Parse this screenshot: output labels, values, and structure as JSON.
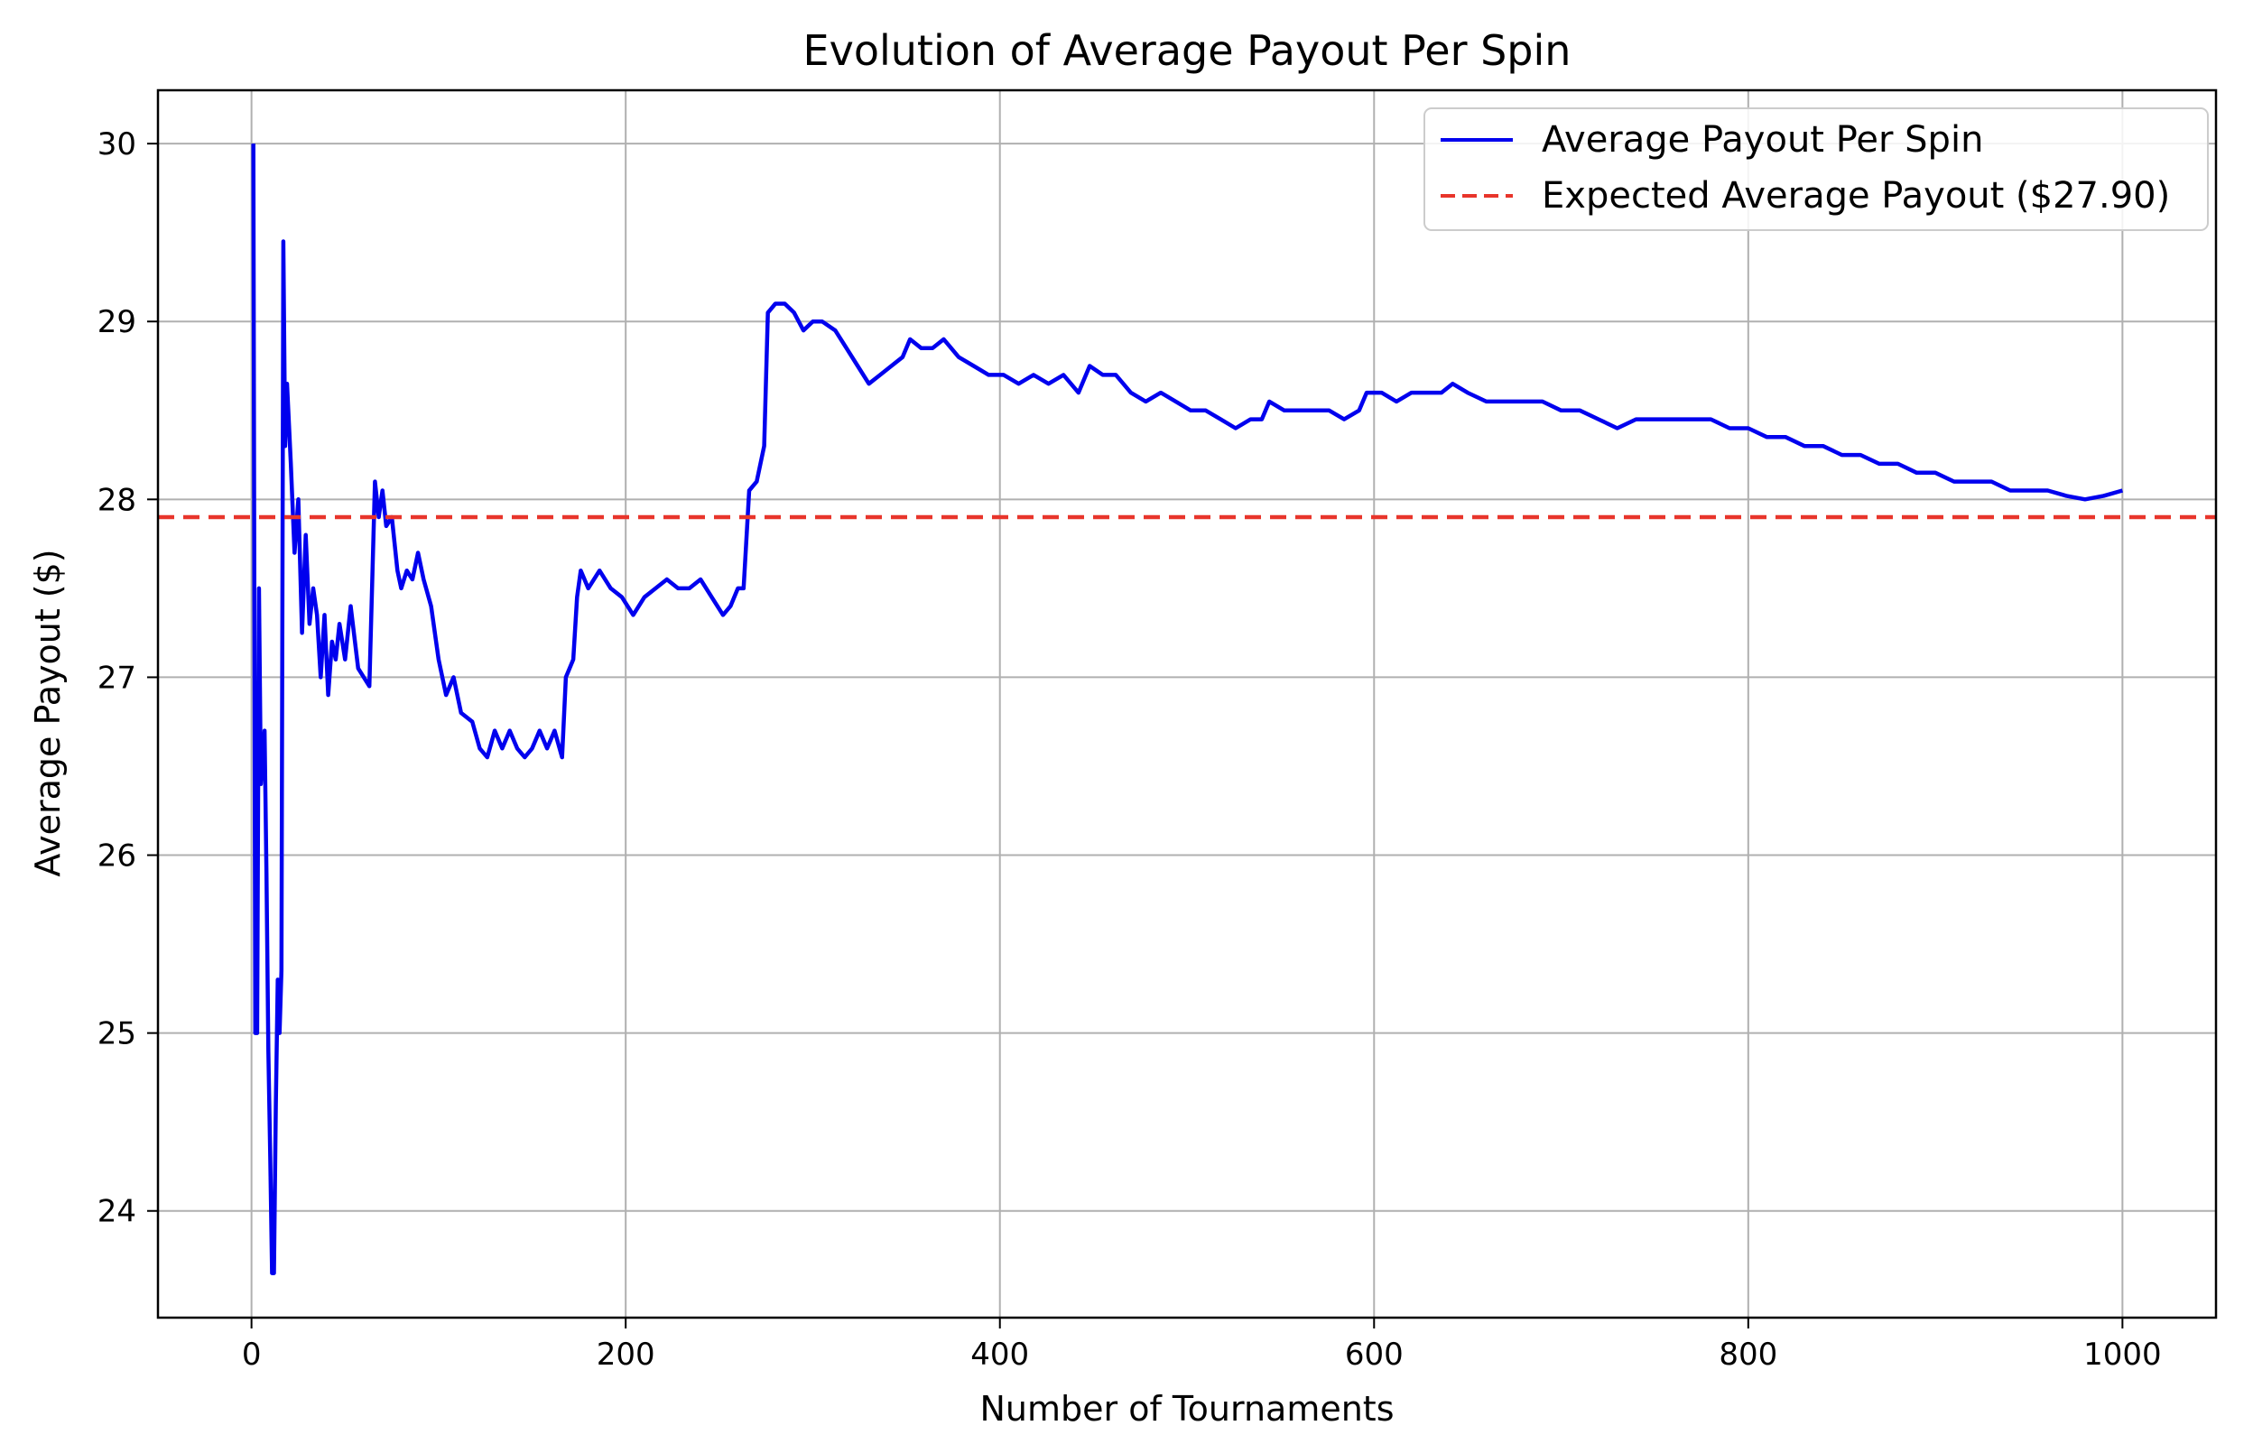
{
  "chart_data": {
    "type": "line",
    "title": "Evolution of Average Payout Per Spin",
    "xlabel": "Number of Tournaments",
    "ylabel": "Average Payout ($)",
    "xlim": [
      -50,
      1050
    ],
    "ylim": [
      23.4,
      30.3
    ],
    "xticks": [
      0,
      200,
      400,
      600,
      800,
      1000
    ],
    "xtick_labels": [
      "0",
      "200",
      "400",
      "600",
      "800",
      "1000"
    ],
    "yticks": [
      24,
      25,
      26,
      27,
      28,
      29,
      30
    ],
    "ytick_labels": [
      "24",
      "25",
      "26",
      "27",
      "28",
      "29",
      "30"
    ],
    "grid": true,
    "legend_position": "top-right",
    "series": [
      {
        "name": "Average Payout Per Spin",
        "color": "#0000ee",
        "style": "solid",
        "points": [
          [
            1,
            30.0
          ],
          [
            2,
            25.0
          ],
          [
            3,
            25.0
          ],
          [
            4,
            27.5
          ],
          [
            5,
            26.4
          ],
          [
            7,
            26.7
          ],
          [
            8,
            25.9
          ],
          [
            9,
            24.9
          ],
          [
            10,
            24.3
          ],
          [
            11,
            23.65
          ],
          [
            12,
            23.65
          ],
          [
            13,
            24.6
          ],
          [
            14,
            25.3
          ],
          [
            15,
            25.0
          ],
          [
            16,
            25.35
          ],
          [
            17,
            29.45
          ],
          [
            18,
            28.3
          ],
          [
            19,
            28.65
          ],
          [
            21,
            28.2
          ],
          [
            23,
            27.7
          ],
          [
            25,
            28.0
          ],
          [
            27,
            27.25
          ],
          [
            29,
            27.8
          ],
          [
            31,
            27.3
          ],
          [
            33,
            27.5
          ],
          [
            35,
            27.35
          ],
          [
            37,
            27.0
          ],
          [
            39,
            27.35
          ],
          [
            41,
            26.9
          ],
          [
            43,
            27.2
          ],
          [
            45,
            27.1
          ],
          [
            47,
            27.3
          ],
          [
            50,
            27.1
          ],
          [
            53,
            27.4
          ],
          [
            57,
            27.05
          ],
          [
            60,
            27.0
          ],
          [
            63,
            26.95
          ],
          [
            66,
            28.1
          ],
          [
            68,
            27.9
          ],
          [
            70,
            28.05
          ],
          [
            72,
            27.85
          ],
          [
            75,
            27.9
          ],
          [
            78,
            27.6
          ],
          [
            80,
            27.5
          ],
          [
            83,
            27.6
          ],
          [
            86,
            27.55
          ],
          [
            89,
            27.7
          ],
          [
            92,
            27.55
          ],
          [
            96,
            27.4
          ],
          [
            100,
            27.1
          ],
          [
            104,
            26.9
          ],
          [
            108,
            27.0
          ],
          [
            112,
            26.8
          ],
          [
            118,
            26.75
          ],
          [
            122,
            26.6
          ],
          [
            126,
            26.55
          ],
          [
            130,
            26.7
          ],
          [
            134,
            26.6
          ],
          [
            138,
            26.7
          ],
          [
            142,
            26.6
          ],
          [
            146,
            26.55
          ],
          [
            150,
            26.6
          ],
          [
            154,
            26.7
          ],
          [
            158,
            26.6
          ],
          [
            162,
            26.7
          ],
          [
            166,
            26.55
          ],
          [
            168,
            27.0
          ],
          [
            170,
            27.05
          ],
          [
            172,
            27.1
          ],
          [
            174,
            27.45
          ],
          [
            176,
            27.6
          ],
          [
            180,
            27.5
          ],
          [
            186,
            27.6
          ],
          [
            192,
            27.5
          ],
          [
            198,
            27.45
          ],
          [
            204,
            27.35
          ],
          [
            210,
            27.45
          ],
          [
            216,
            27.5
          ],
          [
            222,
            27.55
          ],
          [
            228,
            27.5
          ],
          [
            234,
            27.5
          ],
          [
            240,
            27.55
          ],
          [
            246,
            27.45
          ],
          [
            252,
            27.35
          ],
          [
            256,
            27.4
          ],
          [
            260,
            27.5
          ],
          [
            263,
            27.5
          ],
          [
            266,
            28.05
          ],
          [
            270,
            28.1
          ],
          [
            274,
            28.3
          ],
          [
            276,
            29.05
          ],
          [
            280,
            29.1
          ],
          [
            285,
            29.1
          ],
          [
            290,
            29.05
          ],
          [
            295,
            28.95
          ],
          [
            300,
            29.0
          ],
          [
            305,
            29.0
          ],
          [
            312,
            28.95
          ],
          [
            318,
            28.85
          ],
          [
            324,
            28.75
          ],
          [
            330,
            28.65
          ],
          [
            336,
            28.7
          ],
          [
            342,
            28.75
          ],
          [
            348,
            28.8
          ],
          [
            352,
            28.9
          ],
          [
            358,
            28.85
          ],
          [
            364,
            28.85
          ],
          [
            370,
            28.9
          ],
          [
            378,
            28.8
          ],
          [
            386,
            28.75
          ],
          [
            394,
            28.7
          ],
          [
            402,
            28.7
          ],
          [
            410,
            28.65
          ],
          [
            418,
            28.7
          ],
          [
            426,
            28.65
          ],
          [
            434,
            28.7
          ],
          [
            442,
            28.6
          ],
          [
            448,
            28.75
          ],
          [
            455,
            28.7
          ],
          [
            462,
            28.7
          ],
          [
            470,
            28.6
          ],
          [
            478,
            28.55
          ],
          [
            486,
            28.6
          ],
          [
            494,
            28.55
          ],
          [
            502,
            28.5
          ],
          [
            510,
            28.5
          ],
          [
            518,
            28.45
          ],
          [
            526,
            28.4
          ],
          [
            534,
            28.45
          ],
          [
            540,
            28.45
          ],
          [
            544,
            28.55
          ],
          [
            552,
            28.5
          ],
          [
            560,
            28.5
          ],
          [
            568,
            28.5
          ],
          [
            576,
            28.5
          ],
          [
            584,
            28.45
          ],
          [
            592,
            28.5
          ],
          [
            596,
            28.6
          ],
          [
            604,
            28.6
          ],
          [
            612,
            28.55
          ],
          [
            620,
            28.6
          ],
          [
            628,
            28.6
          ],
          [
            636,
            28.6
          ],
          [
            642,
            28.65
          ],
          [
            650,
            28.6
          ],
          [
            660,
            28.55
          ],
          [
            670,
            28.55
          ],
          [
            680,
            28.55
          ],
          [
            690,
            28.55
          ],
          [
            700,
            28.5
          ],
          [
            710,
            28.5
          ],
          [
            720,
            28.45
          ],
          [
            730,
            28.4
          ],
          [
            740,
            28.45
          ],
          [
            750,
            28.45
          ],
          [
            760,
            28.45
          ],
          [
            770,
            28.45
          ],
          [
            780,
            28.45
          ],
          [
            790,
            28.4
          ],
          [
            800,
            28.4
          ],
          [
            810,
            28.35
          ],
          [
            820,
            28.35
          ],
          [
            830,
            28.3
          ],
          [
            840,
            28.3
          ],
          [
            850,
            28.25
          ],
          [
            860,
            28.25
          ],
          [
            870,
            28.2
          ],
          [
            880,
            28.2
          ],
          [
            890,
            28.15
          ],
          [
            900,
            28.15
          ],
          [
            910,
            28.1
          ],
          [
            920,
            28.1
          ],
          [
            930,
            28.1
          ],
          [
            940,
            28.05
          ],
          [
            950,
            28.05
          ],
          [
            960,
            28.05
          ],
          [
            970,
            28.02
          ],
          [
            980,
            28.0
          ],
          [
            990,
            28.02
          ],
          [
            1000,
            28.05
          ]
        ]
      },
      {
        "name": "Expected Average Payout ($27.90)",
        "color": "#e8352b",
        "style": "dashed",
        "constant_y": 27.9
      }
    ]
  }
}
